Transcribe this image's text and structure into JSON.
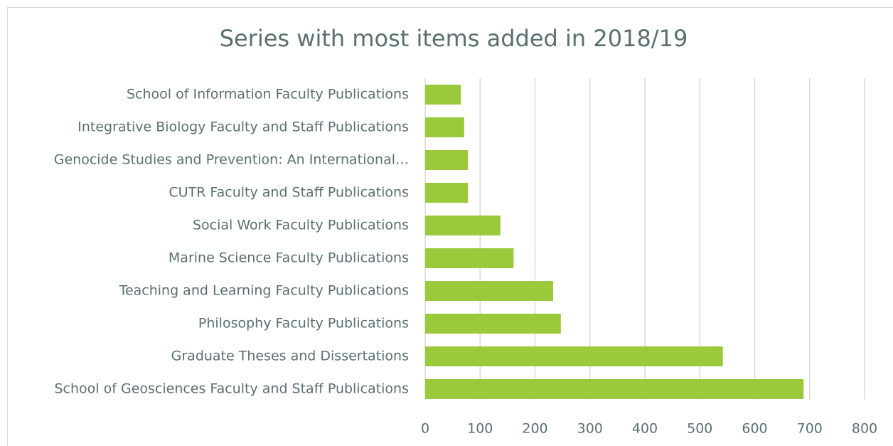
{
  "chart_data": {
    "type": "bar",
    "orientation": "horizontal",
    "title": "Series with most items added in 2018/19",
    "categories": [
      "School of Information Faculty Publications",
      "Integrative Biology Faculty and Staff Publications",
      "Genocide Studies and Prevention: An International…",
      "CUTR Faculty and Staff Publications",
      "Social Work Faculty Publications",
      "Marine Science Faculty Publications",
      "Teaching and Learning Faculty Publications",
      "Philosophy Faculty Publications",
      "Graduate Theses and Dissertations",
      "School of Geosciences Faculty and Staff Publications"
    ],
    "values": [
      65,
      71,
      78,
      78,
      137,
      161,
      233,
      247,
      542,
      689
    ],
    "color": "#9bc93c",
    "xlim": [
      0,
      800
    ],
    "xticks": [
      0,
      100,
      200,
      300,
      400,
      500,
      600,
      700,
      800
    ],
    "grid": true
  }
}
